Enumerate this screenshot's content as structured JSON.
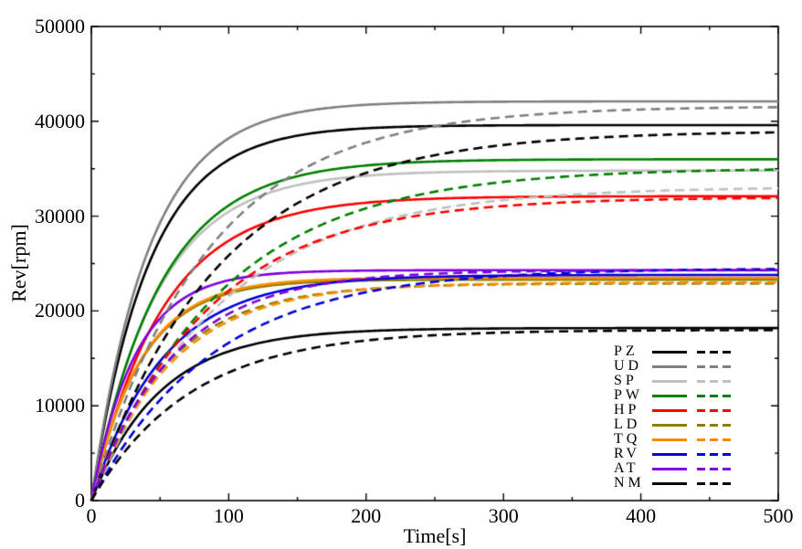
{
  "chart_data": {
    "type": "line",
    "title": "",
    "xlabel": "Time[s]",
    "ylabel": "Rev[rpm]",
    "xlim": [
      0,
      500
    ],
    "ylim": [
      0,
      50000
    ],
    "x_major_ticks": [
      0,
      100,
      200,
      300,
      400,
      500
    ],
    "x_minor_step": 50,
    "y_major_ticks": [
      0,
      10000,
      20000,
      30000,
      40000,
      50000
    ],
    "y_minor_step": 5000,
    "grid": false,
    "tick_style": "inward, mirrored on all four frame sides",
    "legend_position": "inside lower right, no border",
    "line_styles": [
      "solid",
      "dashed"
    ],
    "model": "rpm(t) = final_rpm * (1 - exp(-t / tau_s))",
    "sample_step_s": 2,
    "series": [
      {
        "name": "PZ",
        "color": "#000000",
        "solid": {
          "final_rpm": 39600,
          "tau_s": 42
        },
        "dashed": {
          "final_rpm": 39000,
          "tau_s": 92
        }
      },
      {
        "name": "UD",
        "color": "#808080",
        "solid": {
          "final_rpm": 42100,
          "tau_s": 42
        },
        "dashed": {
          "final_rpm": 41600,
          "tau_s": 84
        }
      },
      {
        "name": "SP",
        "color": "#c0c0c0",
        "solid": {
          "final_rpm": 34800,
          "tau_s": 48
        },
        "dashed": {
          "final_rpm": 33100,
          "tau_s": 95
        }
      },
      {
        "name": "PW",
        "color": "#008000",
        "solid": {
          "final_rpm": 36000,
          "tau_s": 50
        },
        "dashed": {
          "final_rpm": 35100,
          "tau_s": 95
        }
      },
      {
        "name": "HP",
        "color": "#ff0000",
        "solid": {
          "final_rpm": 32100,
          "tau_s": 52
        },
        "dashed": {
          "final_rpm": 32000,
          "tau_s": 85
        }
      },
      {
        "name": "LD",
        "color": "#8b8000",
        "solid": {
          "final_rpm": 23300,
          "tau_s": 36
        },
        "dashed": {
          "final_rpm": 22900,
          "tau_s": 55
        }
      },
      {
        "name": "TQ",
        "color": "#ff8c00",
        "solid": {
          "final_rpm": 23500,
          "tau_s": 36
        },
        "dashed": {
          "final_rpm": 23000,
          "tau_s": 58
        }
      },
      {
        "name": "RV",
        "color": "#0000dd",
        "solid": {
          "final_rpm": 23800,
          "tau_s": 52
        },
        "dashed": {
          "final_rpm": 24500,
          "tau_s": 88
        }
      },
      {
        "name": "AT",
        "color": "#8000e0",
        "solid": {
          "final_rpm": 24300,
          "tau_s": 32
        },
        "dashed": {
          "final_rpm": 24300,
          "tau_s": 60
        }
      },
      {
        "name": "NM",
        "color": "#000000",
        "solid": {
          "final_rpm": 18200,
          "tau_s": 50
        },
        "dashed": {
          "final_rpm": 18000,
          "tau_s": 72
        }
      }
    ]
  },
  "layout_colors": {
    "background": "#ffffff",
    "frame": "#000000",
    "text": "#000000"
  }
}
